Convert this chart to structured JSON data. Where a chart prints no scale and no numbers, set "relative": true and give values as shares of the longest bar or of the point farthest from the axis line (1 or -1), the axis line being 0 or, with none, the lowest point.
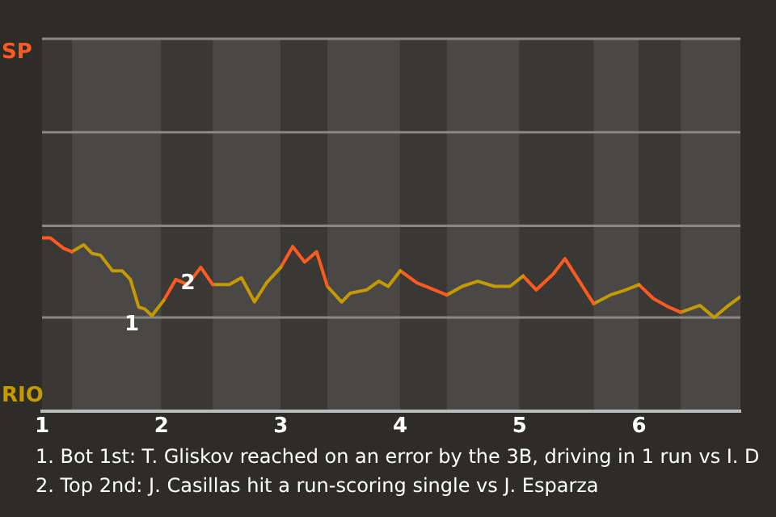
{
  "chart_data": {
    "type": "line",
    "relative": true,
    "xlim": [
      1,
      6.85
    ],
    "xticks": [
      1,
      2,
      3,
      4,
      5,
      6
    ],
    "legend": false,
    "marker": "none",
    "line_style": "solid",
    "series": [
      {
        "color": "#ff5a1f",
        "x": [
          1.0,
          1.07,
          1.18,
          1.25
        ],
        "values": [
          1,
          1,
          0.94,
          0.92
        ]
      },
      {
        "color": "#c49a00",
        "x": [
          1.25,
          1.35,
          1.42,
          1.49,
          1.59,
          1.67,
          1.74,
          1.81,
          1.86,
          1.92,
          2.02
        ],
        "values": [
          0.92,
          0.96,
          0.91,
          0.9,
          0.81,
          0.81,
          0.76,
          0.6,
          0.59,
          0.55,
          0.64
        ]
      },
      {
        "color": "#ff5a1f",
        "x": [
          2.02,
          2.12,
          2.22,
          2.33,
          2.43
        ],
        "values": [
          0.64,
          0.76,
          0.73,
          0.83,
          0.73
        ]
      },
      {
        "color": "#c49a00",
        "x": [
          2.43,
          2.57,
          2.67,
          2.78,
          2.88,
          3.0
        ],
        "values": [
          0.73,
          0.73,
          0.77,
          0.63,
          0.74,
          0.83
        ]
      },
      {
        "color": "#ff5a1f",
        "x": [
          3.0,
          3.1,
          3.2,
          3.3,
          3.39
        ],
        "values": [
          0.83,
          0.95,
          0.86,
          0.92,
          0.72
        ]
      },
      {
        "color": "#c49a00",
        "x": [
          3.39,
          3.51,
          3.58,
          3.72,
          3.82,
          3.9,
          4.0
        ],
        "values": [
          0.72,
          0.63,
          0.68,
          0.7,
          0.75,
          0.72,
          0.81
        ]
      },
      {
        "color": "#ff5a1f",
        "x": [
          4.0,
          4.14,
          4.25,
          4.39
        ],
        "values": [
          0.81,
          0.74,
          0.71,
          0.67
        ]
      },
      {
        "color": "#c49a00",
        "x": [
          4.39,
          4.52,
          4.65,
          4.79,
          4.92,
          5.03
        ],
        "values": [
          0.67,
          0.72,
          0.75,
          0.72,
          0.72,
          0.78
        ]
      },
      {
        "color": "#ff5a1f",
        "x": [
          5.03,
          5.14,
          5.28,
          5.38,
          5.62
        ],
        "values": [
          0.78,
          0.7,
          0.79,
          0.88,
          0.62
        ]
      },
      {
        "color": "#c49a00",
        "x": [
          5.62,
          5.76,
          5.89,
          6.0
        ],
        "values": [
          0.62,
          0.67,
          0.7,
          0.73
        ]
      },
      {
        "color": "#ff5a1f",
        "x": [
          6.0,
          6.12,
          6.25,
          6.35
        ],
        "values": [
          0.73,
          0.65,
          0.6,
          0.57
        ]
      },
      {
        "color": "#c49a00",
        "x": [
          6.35,
          6.51,
          6.63,
          6.75,
          6.85
        ],
        "values": [
          0.57,
          0.61,
          0.54,
          0.61,
          0.66
        ]
      }
    ],
    "ref_lines": [
      {
        "axis": "y",
        "value": 0.54,
        "color": "#8a8885"
      },
      {
        "axis": "y",
        "value": 1.07,
        "color": "#8a8885"
      },
      {
        "axis": "y",
        "value": 1.61,
        "color": "#8a8885"
      },
      {
        "axis": "y",
        "value": 2.15,
        "color": "#8a8885"
      }
    ],
    "bands": [
      {
        "axis": "x",
        "from": 1,
        "to": 1.25,
        "color": "#3a3834"
      },
      {
        "axis": "x",
        "from": 1.25,
        "to": 2,
        "color": "#4a4846"
      },
      {
        "axis": "x",
        "from": 2,
        "to": 2.43,
        "color": "#3a3834"
      },
      {
        "axis": "x",
        "from": 2.43,
        "to": 3,
        "color": "#4a4846"
      },
      {
        "axis": "x",
        "from": 3,
        "to": 3.39,
        "color": "#3a3834"
      },
      {
        "axis": "x",
        "from": 3.39,
        "to": 4,
        "color": "#4a4846"
      },
      {
        "axis": "x",
        "from": 4,
        "to": 4.39,
        "color": "#3a3834"
      },
      {
        "axis": "x",
        "from": 4.39,
        "to": 5,
        "color": "#4a4846"
      },
      {
        "axis": "x",
        "from": 5,
        "to": 5.62,
        "color": "#3a3834"
      },
      {
        "axis": "x",
        "from": 5.62,
        "to": 6,
        "color": "#4a4846"
      },
      {
        "axis": "x",
        "from": 6,
        "to": 6.35,
        "color": "#3a3834"
      },
      {
        "axis": "x",
        "from": 6.35,
        "to": 6.85,
        "color": "#4a4846"
      }
    ],
    "annotations": [
      "SP",
      "RIO",
      {
        "text": "1",
        "x": 1.86,
        "y": 0.59
      },
      {
        "text": "2",
        "x": 2.33,
        "y": 0.83
      },
      "1. Bot 1st: T. Gliskov reached on an error by the 3B, driving in 1 run vs I. D",
      "2. Top 2nd: J. Casillas hit a run-scoring single vs J. Esparza"
    ]
  }
}
